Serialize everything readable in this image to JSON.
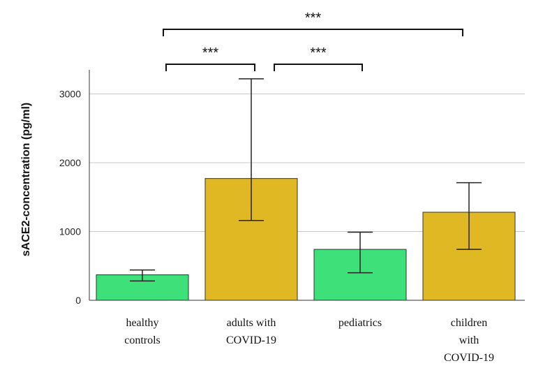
{
  "chart_data": {
    "type": "bar",
    "title": "",
    "xlabel": "",
    "ylabel": "sACE2-concentration  (pg/ml)",
    "ylim": [
      0,
      3300
    ],
    "yticks": [
      0,
      1000,
      2000,
      3000
    ],
    "grid": true,
    "categories": [
      [
        "healthy",
        "controls"
      ],
      [
        "adults  with",
        "COVID-19"
      ],
      [
        "pediatrics"
      ],
      [
        "children",
        "with",
        "COVID-19"
      ]
    ],
    "values": [
      370,
      1770,
      740,
      1280
    ],
    "error_low": [
      280,
      1160,
      400,
      740
    ],
    "error_high": [
      440,
      3220,
      990,
      1710
    ],
    "colors": [
      "#3ee07a",
      "#e0b824",
      "#3ee07a",
      "#e0b824"
    ],
    "significance": [
      {
        "from": 0,
        "to": 1,
        "label": "***"
      },
      {
        "from": 1,
        "to": 2,
        "label": "***"
      },
      {
        "from": 0,
        "to": 3,
        "label": "***"
      }
    ]
  }
}
